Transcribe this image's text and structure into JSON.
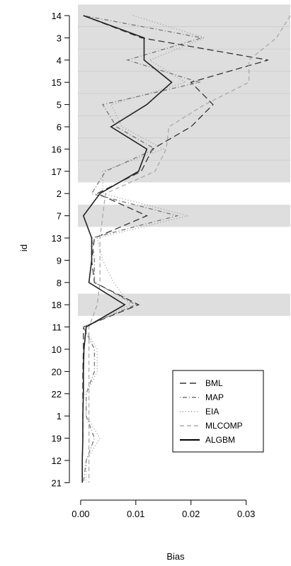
{
  "chart_data": {
    "type": "line",
    "orientation": "horizontal",
    "xlabel": "Bias",
    "ylabel": "id",
    "xlim": [
      -0.0005,
      0.038
    ],
    "x_ticks": [
      0.0,
      0.01,
      0.02,
      0.03
    ],
    "x_tick_labels": [
      "0.00",
      "0.01",
      "0.02",
      "0.03"
    ],
    "categories": [
      "14",
      "3",
      "4",
      "15",
      "5",
      "6",
      "16",
      "17",
      "2",
      "7",
      "13",
      "9",
      "8",
      "18",
      "11",
      "10",
      "20",
      "22",
      "1",
      "19",
      "12",
      "21"
    ],
    "highlighted_categories": [
      [
        "14",
        "17"
      ],
      [
        "7",
        "7"
      ],
      [
        "18",
        "18"
      ]
    ],
    "grid": false,
    "legend_position": "bottom-right",
    "series": [
      {
        "name": "BML",
        "dash": "long-dash",
        "color": "#333333",
        "values": [
          0.0005,
          0.011,
          0.034,
          0.02,
          0.024,
          0.02,
          0.013,
          0.011,
          0.003,
          0.012,
          0.0025,
          0.002,
          0.0025,
          0.0105,
          0.0005,
          0.0005,
          0.0004,
          0.0004,
          0.0004,
          0.0004,
          0.0003,
          0.0003
        ]
      },
      {
        "name": "MAP",
        "dash": "dot-dash",
        "color": "#777777",
        "values": [
          0.0005,
          0.022,
          0.0085,
          0.0215,
          0.004,
          0.0065,
          0.0135,
          0.0045,
          0.002,
          0.0175,
          0.002,
          0.0025,
          0.0025,
          0.01,
          0.0005,
          0.0025,
          0.0025,
          0.001,
          0.001,
          0.0025,
          0.001,
          0.0005
        ]
      },
      {
        "name": "EIA",
        "dash": "dotted",
        "color": "#999999",
        "values": [
          0.0095,
          0.0225,
          0.0125,
          0.019,
          0.0055,
          0.0075,
          0.015,
          0.004,
          0.004,
          0.0195,
          0.003,
          0.004,
          0.006,
          0.009,
          0.0005,
          0.003,
          0.003,
          0.001,
          0.001,
          0.0035,
          0.001,
          0.001
        ]
      },
      {
        "name": "MLCOMP",
        "dash": "dashed",
        "color": "#aaaaaa",
        "values": [
          0.038,
          0.0355,
          0.0305,
          0.0305,
          0.0225,
          0.016,
          0.0155,
          0.0135,
          0.0045,
          0.004,
          0.0035,
          0.0035,
          0.0035,
          0.003,
          0.0015,
          0.0015,
          0.0015,
          0.0015,
          0.0015,
          0.0015,
          0.0015,
          0.0015
        ]
      },
      {
        "name": "ALGBM",
        "dash": "solid",
        "color": "#222222",
        "values": [
          0.0005,
          0.0115,
          0.0115,
          0.0165,
          0.012,
          0.0055,
          0.012,
          0.0105,
          0.0035,
          0.0005,
          0.002,
          0.002,
          0.0015,
          0.008,
          0.001,
          0.0006,
          0.0005,
          0.0005,
          0.0004,
          0.0004,
          0.0003,
          0.0003
        ]
      }
    ]
  }
}
